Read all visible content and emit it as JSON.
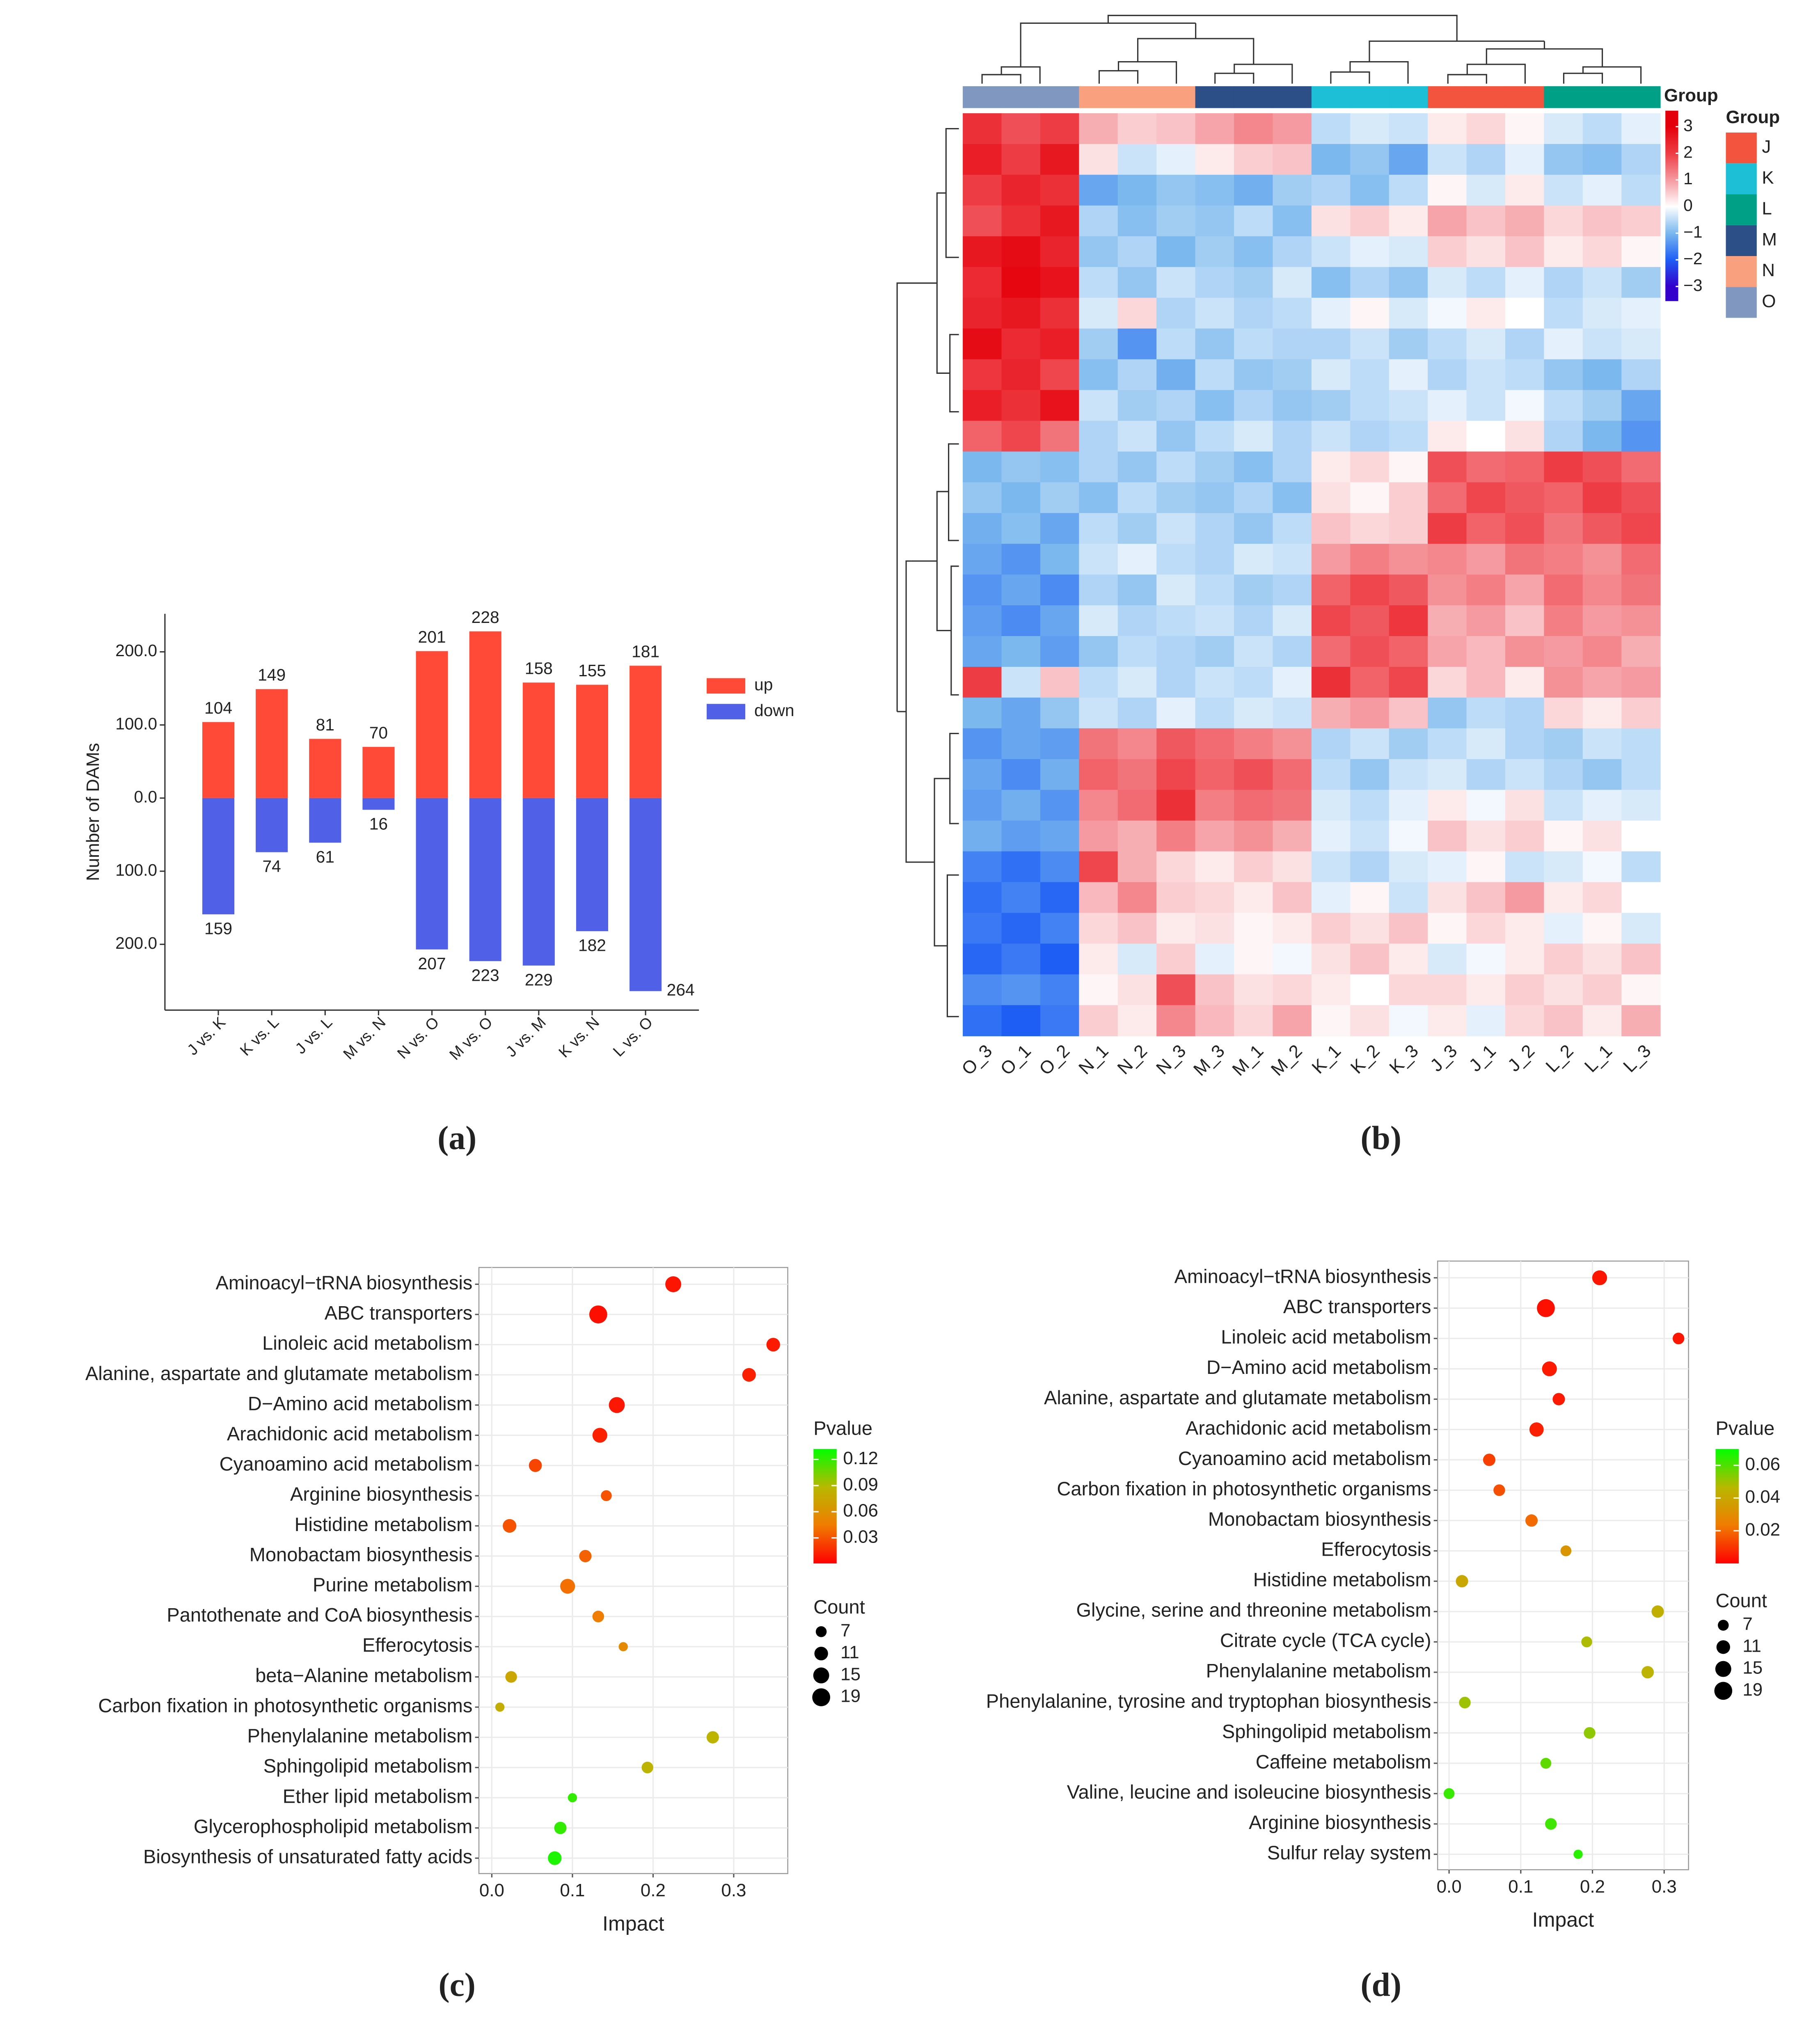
{
  "chart_data": [
    {
      "type": "bar",
      "panel_label": "(a)",
      "ylabel": "Number of DAMs",
      "categories": [
        "J vs. K",
        "K vs. L",
        "J vs. L",
        "M vs. N",
        "N vs. O",
        "M vs. O",
        "J vs. M",
        "K vs. N",
        "L vs. O"
      ],
      "series": [
        {
          "name": "up",
          "color": "#fe4a36",
          "values": [
            104,
            149,
            81,
            70,
            201,
            228,
            158,
            155,
            181
          ]
        },
        {
          "name": "down",
          "color": "#5061e8",
          "values": [
            -159,
            -74,
            -61,
            -16,
            -207,
            -223,
            -229,
            -182,
            -264
          ],
          "value_labels": [
            "159",
            "74",
            "61",
            "16",
            "207",
            "223",
            "229",
            "182",
            "264"
          ]
        }
      ],
      "ylim": [
        -290,
        252
      ],
      "yticks": [
        {
          "value": 200,
          "label": "200.0"
        },
        {
          "value": 100,
          "label": "100.0"
        },
        {
          "value": 0,
          "label": "0.0"
        },
        {
          "value": -100,
          "label": "100.0"
        },
        {
          "value": -200,
          "label": "200.0"
        }
      ]
    },
    {
      "type": "heatmap",
      "panel_label": "(b)",
      "columns": [
        "O_3",
        "O_1",
        "O_2",
        "N_1",
        "N_2",
        "N_3",
        "M_3",
        "M_1",
        "M_2",
        "K_1",
        "K_2",
        "K_3",
        "J_3",
        "J_1",
        "J_2",
        "L_2",
        "L_1",
        "L_3"
      ],
      "matrix": [
        [
          2.2,
          1.8,
          2.0,
          0.8,
          0.5,
          0.6,
          0.9,
          1.2,
          1.0,
          -0.5,
          -0.3,
          -0.4,
          0.2,
          0.4,
          0.1,
          -0.3,
          -0.5,
          -0.2
        ],
        [
          2.5,
          2.0,
          2.6,
          0.3,
          -0.4,
          -0.2,
          0.2,
          0.5,
          0.6,
          -1.0,
          -0.8,
          -1.2,
          -0.4,
          -0.6,
          -0.2,
          -0.8,
          -0.9,
          -0.6
        ],
        [
          2.0,
          2.4,
          2.2,
          -1.2,
          -1.0,
          -0.8,
          -0.9,
          -1.1,
          -0.7,
          -0.6,
          -0.9,
          -0.5,
          0.1,
          -0.3,
          0.2,
          -0.4,
          -0.2,
          -0.5
        ],
        [
          1.8,
          2.2,
          2.6,
          -0.6,
          -0.9,
          -0.7,
          -0.8,
          -0.5,
          -0.9,
          0.3,
          0.5,
          0.2,
          0.9,
          0.6,
          0.8,
          0.4,
          0.6,
          0.5
        ],
        [
          2.6,
          2.8,
          2.4,
          -0.8,
          -0.6,
          -1.0,
          -0.7,
          -0.9,
          -0.6,
          -0.4,
          -0.2,
          -0.3,
          0.5,
          0.3,
          0.6,
          0.2,
          0.4,
          0.1
        ],
        [
          2.3,
          2.9,
          2.7,
          -0.5,
          -0.8,
          -0.4,
          -0.6,
          -0.7,
          -0.3,
          -0.9,
          -0.6,
          -0.8,
          -0.3,
          -0.5,
          -0.2,
          -0.6,
          -0.4,
          -0.7
        ],
        [
          2.4,
          2.6,
          2.2,
          -0.3,
          0.4,
          -0.6,
          -0.4,
          -0.6,
          -0.5,
          -0.2,
          0.1,
          -0.3,
          -0.1,
          0.2,
          0.0,
          -0.5,
          -0.3,
          -0.2
        ],
        [
          2.8,
          2.3,
          2.5,
          -0.7,
          -1.4,
          -0.5,
          -0.8,
          -0.5,
          -0.6,
          -0.6,
          -0.4,
          -0.7,
          -0.5,
          -0.3,
          -0.6,
          -0.2,
          -0.4,
          -0.3
        ],
        [
          2.1,
          2.4,
          1.9,
          -0.9,
          -0.6,
          -1.1,
          -0.5,
          -0.8,
          -0.7,
          -0.3,
          -0.5,
          -0.2,
          -0.6,
          -0.4,
          -0.5,
          -0.8,
          -1.0,
          -0.6
        ],
        [
          2.5,
          2.2,
          2.7,
          -0.4,
          -0.7,
          -0.6,
          -0.9,
          -0.6,
          -0.8,
          -0.7,
          -0.5,
          -0.4,
          -0.2,
          -0.4,
          -0.1,
          -0.5,
          -0.7,
          -1.2
        ],
        [
          1.6,
          1.9,
          1.4,
          -0.6,
          -0.4,
          -0.8,
          -0.5,
          -0.3,
          -0.6,
          -0.4,
          -0.6,
          -0.5,
          0.2,
          0.0,
          0.3,
          -0.6,
          -1.0,
          -1.4
        ],
        [
          -1.0,
          -0.8,
          -0.9,
          -0.6,
          -0.8,
          -0.5,
          -0.7,
          -0.9,
          -0.6,
          0.2,
          0.4,
          0.1,
          1.8,
          1.5,
          1.6,
          2.0,
          1.8,
          1.5
        ],
        [
          -0.8,
          -1.0,
          -0.7,
          -0.9,
          -0.5,
          -0.7,
          -0.8,
          -0.6,
          -0.9,
          0.3,
          0.1,
          0.5,
          1.5,
          1.9,
          1.7,
          1.6,
          2.0,
          1.8
        ],
        [
          -1.1,
          -0.9,
          -1.2,
          -0.5,
          -0.7,
          -0.4,
          -0.6,
          -0.8,
          -0.5,
          0.6,
          0.4,
          0.5,
          2.0,
          1.6,
          1.8,
          1.4,
          1.7,
          1.9
        ],
        [
          -1.2,
          -1.4,
          -1.0,
          -0.4,
          -0.2,
          -0.5,
          -0.6,
          -0.3,
          -0.4,
          1.0,
          1.3,
          1.1,
          1.2,
          1.0,
          1.4,
          1.3,
          1.1,
          1.5
        ],
        [
          -1.4,
          -1.2,
          -1.5,
          -0.6,
          -0.8,
          -0.3,
          -0.5,
          -0.7,
          -0.6,
          1.6,
          1.9,
          1.7,
          1.1,
          1.3,
          0.9,
          1.5,
          1.2,
          1.4
        ],
        [
          -1.3,
          -1.5,
          -1.2,
          -0.3,
          -0.6,
          -0.5,
          -0.4,
          -0.6,
          -0.3,
          1.9,
          1.7,
          2.1,
          0.8,
          1.0,
          0.6,
          1.3,
          1.0,
          1.1
        ],
        [
          -1.2,
          -1.0,
          -1.3,
          -0.8,
          -0.5,
          -0.6,
          -0.7,
          -0.4,
          -0.6,
          1.5,
          1.8,
          1.6,
          0.9,
          0.7,
          1.1,
          1.0,
          1.2,
          0.8
        ],
        [
          2.0,
          -0.4,
          0.6,
          -0.5,
          -0.3,
          -0.6,
          -0.4,
          -0.5,
          -0.2,
          2.2,
          1.6,
          1.9,
          0.4,
          0.7,
          0.2,
          1.1,
          0.9,
          1.0
        ],
        [
          -1.0,
          -1.2,
          -0.8,
          -0.4,
          -0.6,
          -0.2,
          -0.5,
          -0.3,
          -0.4,
          0.8,
          1.0,
          0.6,
          -0.8,
          -0.5,
          -0.6,
          0.4,
          0.2,
          0.5
        ],
        [
          -1.4,
          -1.2,
          -1.3,
          1.4,
          1.2,
          1.7,
          1.5,
          1.3,
          1.1,
          -0.6,
          -0.4,
          -0.7,
          -0.5,
          -0.3,
          -0.6,
          -0.7,
          -0.4,
          -0.5
        ],
        [
          -1.2,
          -1.5,
          -1.1,
          1.6,
          1.4,
          1.9,
          1.6,
          1.8,
          1.5,
          -0.5,
          -0.8,
          -0.4,
          -0.3,
          -0.6,
          -0.4,
          -0.6,
          -0.8,
          -0.5
        ],
        [
          -1.3,
          -1.1,
          -1.4,
          1.2,
          1.5,
          2.2,
          1.3,
          1.5,
          1.4,
          -0.3,
          -0.5,
          -0.2,
          0.2,
          -0.1,
          0.3,
          -0.4,
          -0.2,
          -0.3
        ],
        [
          -1.1,
          -1.3,
          -1.2,
          1.0,
          0.8,
          1.3,
          0.9,
          1.1,
          0.8,
          -0.2,
          -0.4,
          -0.1,
          0.6,
          0.3,
          0.5,
          0.1,
          0.3,
          0.0
        ],
        [
          -1.6,
          -1.8,
          -1.5,
          1.9,
          0.8,
          0.4,
          0.2,
          0.5,
          0.3,
          -0.4,
          -0.6,
          -0.3,
          -0.2,
          0.1,
          -0.4,
          -0.3,
          -0.1,
          -0.5
        ],
        [
          -1.8,
          -1.6,
          -1.9,
          0.7,
          1.2,
          0.5,
          0.4,
          0.2,
          0.6,
          -0.2,
          0.1,
          -0.4,
          0.3,
          0.6,
          1.0,
          0.2,
          0.4,
          0.0
        ],
        [
          -1.7,
          -1.9,
          -1.6,
          0.4,
          0.6,
          0.2,
          0.3,
          0.1,
          0.2,
          0.5,
          0.3,
          0.6,
          0.1,
          0.4,
          0.2,
          -0.2,
          0.1,
          -0.3
        ],
        [
          -1.9,
          -1.7,
          -2.0,
          0.2,
          -0.3,
          0.5,
          -0.2,
          0.1,
          -0.1,
          0.3,
          0.6,
          0.2,
          -0.3,
          -0.1,
          0.2,
          0.5,
          0.3,
          0.6
        ],
        [
          -1.5,
          -1.4,
          -1.6,
          0.1,
          0.3,
          1.8,
          0.6,
          0.3,
          0.4,
          0.2,
          0.0,
          0.4,
          0.4,
          0.2,
          0.5,
          0.3,
          0.5,
          0.1
        ],
        [
          -1.8,
          -2.0,
          -1.7,
          0.5,
          0.2,
          1.2,
          0.7,
          0.4,
          0.9,
          0.1,
          0.3,
          -0.1,
          0.2,
          -0.2,
          0.4,
          0.6,
          0.2,
          0.8
        ]
      ],
      "colorbar_title": "Group",
      "clim": [
        -3.55,
        3.6
      ],
      "cticks": [
        3,
        2,
        1,
        0,
        {
          "value": -1,
          "label": "−1"
        },
        {
          "value": -2,
          "label": "−2"
        },
        {
          "value": -3,
          "label": "−3"
        }
      ],
      "color_stops": [
        {
          "value": -3,
          "color": "#3300cc"
        },
        {
          "value": -2,
          "color": "#1e5ef5"
        },
        {
          "value": -1,
          "color": "#7ab8ee"
        },
        {
          "value": 0,
          "color": "#ffffff"
        },
        {
          "value": 1,
          "color": "#f59aa0"
        },
        {
          "value": 2,
          "color": "#ee3c44"
        },
        {
          "value": 3,
          "color": "#e4000a"
        }
      ],
      "legend_title": "Group",
      "groups": [
        {
          "name": "J",
          "color": "#f2543d"
        },
        {
          "name": "K",
          "color": "#1dbfd7"
        },
        {
          "name": "L",
          "color": "#00a087"
        },
        {
          "name": "M",
          "color": "#2c4f87"
        },
        {
          "name": "N",
          "color": "#f9a07f"
        },
        {
          "name": "O",
          "color": "#8097c0"
        }
      ]
    },
    {
      "type": "scatter",
      "panel_label": "(c)",
      "categories": [
        "Aminoacyl−tRNA biosynthesis",
        "ABC transporters",
        "Linoleic acid metabolism",
        "Alanine, aspartate and glutamate metabolism",
        "D−Amino acid metabolism",
        "Arachidonic acid metabolism",
        "Cyanoamino acid metabolism",
        "Arginine biosynthesis",
        "Histidine metabolism",
        "Monobactam biosynthesis",
        "Purine metabolism",
        "Pantothenate and CoA biosynthesis",
        "Efferocytosis",
        "beta−Alanine metabolism",
        "Carbon fixation in photosynthetic organisms",
        "Phenylalanine metabolism",
        "Sphingolipid metabolism",
        "Ether lipid metabolism",
        "Glycerophospholipid metabolism",
        "Biosynthesis of unsaturated fatty acids"
      ],
      "x": [
        0.225,
        0.132,
        0.349,
        0.319,
        0.155,
        0.134,
        0.054,
        0.142,
        0.022,
        0.116,
        0.094,
        0.132,
        0.163,
        0.024,
        0.01,
        0.274,
        0.193,
        0.1,
        0.085,
        0.078
      ],
      "pvalue": [
        0.008,
        0.006,
        0.01,
        0.012,
        0.009,
        0.012,
        0.025,
        0.03,
        0.03,
        0.035,
        0.04,
        0.045,
        0.055,
        0.075,
        0.08,
        0.085,
        0.085,
        0.12,
        0.12,
        0.125
      ],
      "count": [
        15,
        19,
        11,
        11,
        15,
        13,
        10,
        7,
        11,
        9,
        13,
        8,
        5,
        8,
        5,
        9,
        8,
        5,
        9,
        11
      ],
      "xlabel": "Impact",
      "xlim": [
        -0.016,
        0.367
      ],
      "xticks": [
        {
          "value": 0,
          "label": "0.0"
        },
        0.1,
        0.2,
        0.3
      ],
      "grid": true,
      "color_title": "Pvalue",
      "colors": [
        "#ff0000",
        "#f07c00",
        "#b8b800",
        "#00ff00"
      ],
      "clim": [
        0.0007,
        0.132
      ],
      "cticks": [
        0.12,
        0.09,
        0.06,
        0.03
      ],
      "size_title": "Count",
      "size_ticks": [
        7,
        11,
        15,
        19
      ]
    },
    {
      "type": "scatter",
      "panel_label": "(d)",
      "categories": [
        "Aminoacyl−tRNA biosynthesis",
        "ABC transporters",
        "Linoleic acid metabolism",
        "D−Amino acid metabolism",
        "Alanine, aspartate and glutamate metabolism",
        "Arachidonic acid metabolism",
        "Cyanoamino acid metabolism",
        "Carbon fixation in photosynthetic organisms",
        "Monobactam biosynthesis",
        "Efferocytosis",
        "Histidine metabolism",
        "Glycine, serine and threonine metabolism",
        "Citrate cycle (TCA cycle)",
        "Phenylalanine metabolism",
        "Phenylalanine, tyrosine and tryptophan biosynthesis",
        "Sphingolipid metabolism",
        "Caffeine metabolism",
        "Valine, leucine and isoleucine biosynthesis",
        "Arginine biosynthesis",
        "Sulfur relay system"
      ],
      "x": [
        0.21,
        0.135,
        0.32,
        0.14,
        0.153,
        0.122,
        0.056,
        0.07,
        0.115,
        0.163,
        0.018,
        0.291,
        0.192,
        0.277,
        0.022,
        0.196,
        0.135,
        0.0,
        0.142,
        0.18
      ],
      "pvalue": [
        0.004,
        0.003,
        0.004,
        0.005,
        0.005,
        0.006,
        0.012,
        0.015,
        0.02,
        0.033,
        0.04,
        0.043,
        0.048,
        0.045,
        0.05,
        0.052,
        0.058,
        0.063,
        0.062,
        0.065
      ],
      "count": [
        13,
        19,
        8,
        13,
        9,
        12,
        9,
        8,
        9,
        7,
        9,
        9,
        7,
        9,
        8,
        8,
        7,
        7,
        8,
        5
      ],
      "xlabel": "Impact",
      "xlim": [
        -0.016,
        0.334
      ],
      "xticks": [
        {
          "value": 0,
          "label": "0.0"
        },
        0.1,
        0.2,
        0.3
      ],
      "grid": true,
      "color_title": "Pvalue",
      "colors": [
        "#ff0000",
        "#f07c00",
        "#b8b800",
        "#00ff00"
      ],
      "clim": [
        0.0,
        0.07
      ],
      "cticks": [
        0.06,
        0.04,
        0.02
      ],
      "size_title": "Count",
      "size_ticks": [
        7,
        11,
        15,
        19
      ]
    }
  ]
}
